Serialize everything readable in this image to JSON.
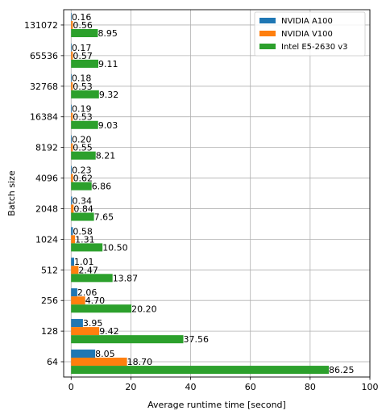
{
  "chart_data": {
    "type": "bar",
    "orientation": "horizontal",
    "categories": [
      "64",
      "128",
      "256",
      "512",
      "1024",
      "2048",
      "4096",
      "8192",
      "16384",
      "32768",
      "65536",
      "131072"
    ],
    "series": [
      {
        "name": "NVIDIA A100",
        "color": "#1f77b4",
        "values": [
          8.05,
          3.95,
          2.06,
          1.01,
          0.58,
          0.34,
          0.23,
          0.2,
          0.19,
          0.18,
          0.17,
          0.16
        ],
        "labels": [
          "8.05",
          "3.95",
          "2.06",
          "1.01",
          "0.58",
          "0.34",
          "0.23",
          "0.20",
          "0.19",
          "0.18",
          "0.17",
          "0.16"
        ]
      },
      {
        "name": "NVIDIA V100",
        "color": "#ff7f0e",
        "values": [
          18.7,
          9.42,
          4.7,
          2.47,
          1.31,
          0.84,
          0.62,
          0.55,
          0.53,
          0.53,
          0.57,
          0.56
        ],
        "labels": [
          "18.70",
          "9.42",
          "4.70",
          "2.47",
          "1.31",
          "0.84",
          "0.62",
          "0.55",
          "0.53",
          "0.53",
          "0.57",
          "0.56"
        ]
      },
      {
        "name": "Intel E5-2630 v3",
        "color": "#2ca02c",
        "values": [
          86.25,
          37.56,
          20.2,
          13.87,
          10.5,
          7.65,
          6.86,
          8.21,
          9.03,
          9.32,
          9.11,
          8.95
        ],
        "labels": [
          "86.25",
          "37.56",
          "20.20",
          "13.87",
          "10.50",
          "7.65",
          "6.86",
          "8.21",
          "9.03",
          "9.32",
          "9.11",
          "8.95"
        ]
      }
    ],
    "title": "",
    "xlabel": "Average runtime time [second]",
    "ylabel": "Batch size",
    "xlim": [
      -2.5,
      100
    ],
    "xticks": [
      0,
      20,
      40,
      60,
      80,
      100
    ],
    "xtick_labels": [
      "0",
      "20",
      "40",
      "60",
      "80",
      "100"
    ],
    "grid": true,
    "legend_position": "top-right"
  }
}
